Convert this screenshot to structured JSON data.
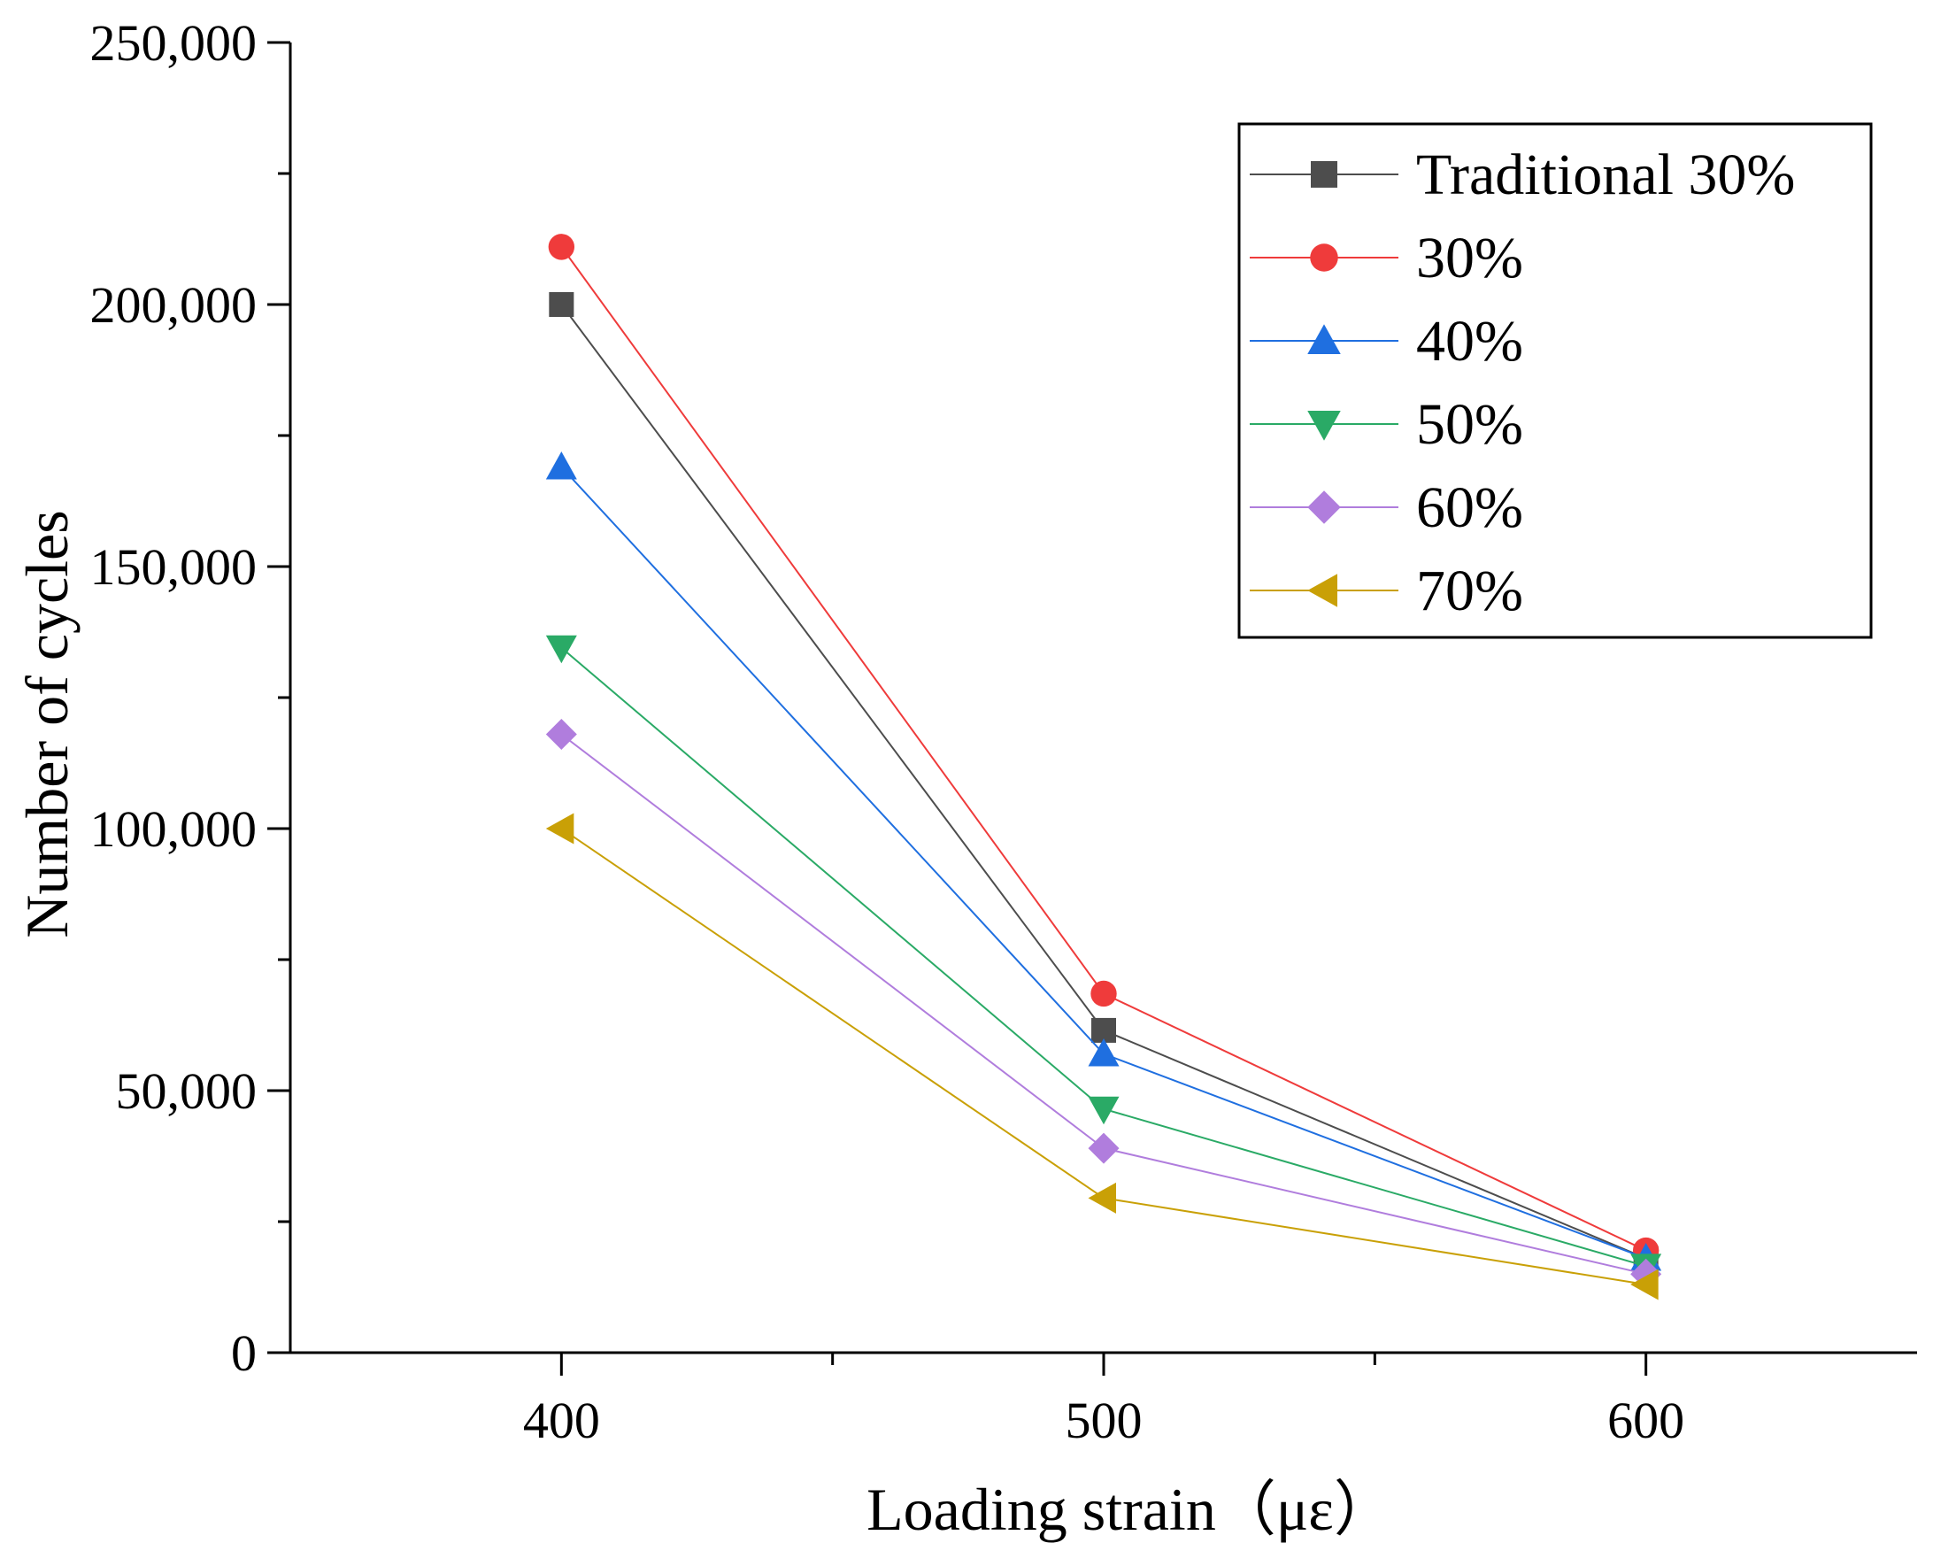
{
  "chart_data": {
    "type": "line",
    "title": "",
    "xlabel": "Loading strain（με）",
    "ylabel": "Number of cycles",
    "x": [
      400,
      500,
      600
    ],
    "xlim": [
      350,
      650
    ],
    "ylim": [
      0,
      250000
    ],
    "x_ticks": [
      400,
      500,
      600
    ],
    "x_tick_labels": [
      "400",
      "500",
      "600"
    ],
    "y_ticks": [
      0,
      50000,
      100000,
      150000,
      200000,
      250000
    ],
    "y_tick_labels": [
      "0",
      "50,000",
      "100,000",
      "150,000",
      "200,000",
      "250,000"
    ],
    "grid": false,
    "legend_position": "top-right",
    "series": [
      {
        "name": "Traditional 30%",
        "values": [
          200000,
          61500,
          18000
        ],
        "color": "#4d4d4d",
        "marker": "square"
      },
      {
        "name": "30%",
        "values": [
          211000,
          68500,
          19500
        ],
        "color": "#ef3b3b",
        "marker": "circle"
      },
      {
        "name": "40%",
        "values": [
          169000,
          57000,
          18000
        ],
        "color": "#1f6fe0",
        "marker": "triangle-up"
      },
      {
        "name": "50%",
        "values": [
          134500,
          46500,
          16500
        ],
        "color": "#2aaa66",
        "marker": "triangle-down"
      },
      {
        "name": "60%",
        "values": [
          118000,
          39000,
          15000
        ],
        "color": "#b07ddd",
        "marker": "diamond"
      },
      {
        "name": "70%",
        "values": [
          100000,
          29500,
          13000
        ],
        "color": "#c9a006",
        "marker": "triangle-left"
      }
    ]
  }
}
